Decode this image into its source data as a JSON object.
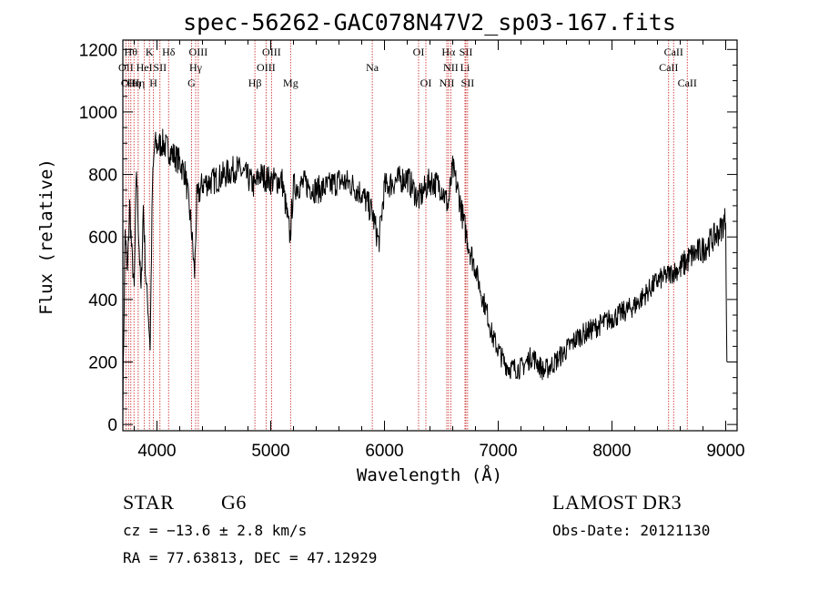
{
  "chart_data": {
    "type": "line",
    "title": "spec-56262-GAC078N47V2_sp03-167.fits",
    "xlabel": "Wavelength (Å)",
    "ylabel": "Flux (relative)",
    "xlim": [
      3700,
      9100
    ],
    "ylim": [
      -20,
      1230
    ],
    "x_ticks": [
      4000,
      5000,
      6000,
      7000,
      8000,
      9000
    ],
    "x_tick_labels": [
      "4000",
      "5000",
      "6000",
      "7000",
      "8000",
      "9000"
    ],
    "y_ticks": [
      0,
      200,
      400,
      600,
      800,
      1000,
      1200
    ],
    "y_tick_labels": [
      "0",
      "200",
      "400",
      "600",
      "800",
      "1000",
      "1200"
    ],
    "series": [
      {
        "name": "flux",
        "color": "#000000",
        "x": [
          3700,
          3720,
          3740,
          3760,
          3780,
          3800,
          3820,
          3840,
          3860,
          3880,
          3900,
          3920,
          3940,
          3960,
          3980,
          4000,
          4050,
          4100,
          4150,
          4200,
          4250,
          4300,
          4330,
          4350,
          4400,
          4500,
          4600,
          4700,
          4800,
          4860,
          4900,
          5000,
          5100,
          5170,
          5200,
          5300,
          5400,
          5500,
          5600,
          5700,
          5800,
          5890,
          5950,
          6000,
          6100,
          6200,
          6300,
          6400,
          6500,
          6560,
          6600,
          6650,
          6700,
          6750,
          6800,
          6850,
          6900,
          6950,
          7000,
          7050,
          7100,
          7200,
          7300,
          7400,
          7500,
          7600,
          7700,
          7800,
          7900,
          8000,
          8100,
          8200,
          8300,
          8400,
          8500,
          8600,
          8700,
          8800,
          8900,
          8950,
          9000,
          9010
        ],
        "y": [
          60,
          620,
          480,
          700,
          540,
          430,
          820,
          600,
          420,
          700,
          480,
          380,
          250,
          760,
          900,
          890,
          900,
          880,
          860,
          840,
          800,
          640,
          480,
          720,
          770,
          780,
          800,
          820,
          790,
          760,
          800,
          780,
          780,
          600,
          760,
          770,
          750,
          760,
          780,
          770,
          740,
          680,
          580,
          760,
          780,
          790,
          720,
          780,
          760,
          700,
          820,
          740,
          640,
          560,
          500,
          420,
          360,
          280,
          240,
          200,
          180,
          180,
          220,
          170,
          200,
          240,
          280,
          300,
          320,
          340,
          360,
          380,
          420,
          460,
          480,
          500,
          540,
          560,
          600,
          620,
          660,
          200
        ]
      }
    ],
    "lines": [
      {
        "w": 3727,
        "label": "OII",
        "row": 1
      },
      {
        "w": 3750,
        "label": "OII",
        "row": 2
      },
      {
        "w": 3770,
        "label": "Hθ",
        "row": 0
      },
      {
        "w": 3798,
        "label": "Hη",
        "row": 2
      },
      {
        "w": 3835,
        "label": "Hη",
        "row": 2
      },
      {
        "w": 3889,
        "label": "HeI",
        "row": 1
      },
      {
        "w": 3934,
        "label": "K",
        "row": 0
      },
      {
        "w": 3969,
        "label": "H",
        "row": 2
      },
      {
        "w": 4026,
        "label": "SII",
        "row": 1
      },
      {
        "w": 4102,
        "label": "Hδ",
        "row": 0
      },
      {
        "w": 4304,
        "label": "G",
        "row": 2
      },
      {
        "w": 4340,
        "label": "Hγ",
        "row": 1
      },
      {
        "w": 4363,
        "label": "OIII",
        "row": 0
      },
      {
        "w": 4861,
        "label": "Hβ",
        "row": 2
      },
      {
        "w": 4959,
        "label": "OIII",
        "row": 1
      },
      {
        "w": 5007,
        "label": "OIII",
        "row": 0
      },
      {
        "w": 5175,
        "label": "Mg",
        "row": 2
      },
      {
        "w": 5893,
        "label": "Na",
        "row": 1
      },
      {
        "w": 6300,
        "label": "OI",
        "row": 0
      },
      {
        "w": 6364,
        "label": "OI",
        "row": 2
      },
      {
        "w": 6548,
        "label": "NII",
        "row": 2
      },
      {
        "w": 6563,
        "label": "Hα",
        "row": 0
      },
      {
        "w": 6583,
        "label": "NII",
        "row": 1
      },
      {
        "w": 6716,
        "label": "SII",
        "row": 0
      },
      {
        "w": 6731,
        "label": "SII",
        "row": 2
      },
      {
        "w": 6708,
        "label": "Li",
        "row": 1
      },
      {
        "w": 8498,
        "label": "CaII",
        "row": 1
      },
      {
        "w": 8542,
        "label": "CaII",
        "row": 0
      },
      {
        "w": 8662,
        "label": "CaII",
        "row": 2
      }
    ],
    "line_color": "#cc3333"
  },
  "info": {
    "class": "STAR",
    "subclass": "G6",
    "cz": "cz = −13.6 ± 2.8 km/s",
    "radec": "RA =  77.63813, DEC =  47.12929",
    "survey": "LAMOST DR3",
    "obsdate": "Obs-Date: 20121130"
  }
}
